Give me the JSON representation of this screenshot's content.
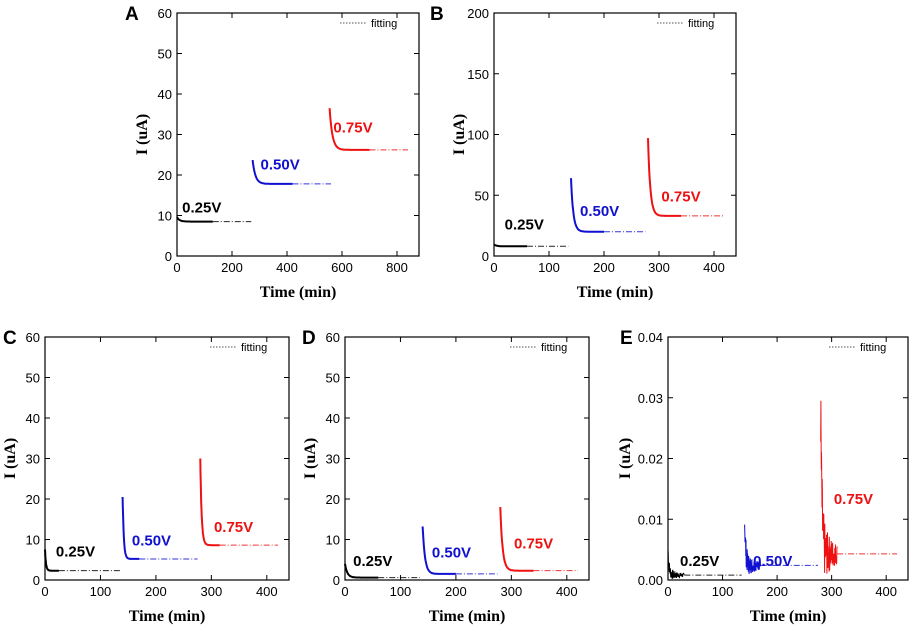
{
  "colors": {
    "v025": "#000000",
    "v050": "#1010d0",
    "v075": "#ee1111"
  },
  "chart_data": [
    {
      "panel": "A",
      "type": "line",
      "xlabel": "Time (min)",
      "ylabel": "I (uA)",
      "xlim": [
        0,
        880
      ],
      "ylim": [
        0,
        60
      ],
      "xticks": [
        0,
        200,
        400,
        600,
        800
      ],
      "yticks": [
        0,
        10,
        20,
        30,
        40,
        50,
        60
      ],
      "legend": "fitting",
      "series": [
        {
          "name": "0.25V",
          "color": "#000000",
          "t0": 0,
          "t1": 130,
          "peak": 9.6,
          "base": 8.5,
          "fit_end": 270
        },
        {
          "name": "0.50V",
          "color": "#1010d0",
          "t0": 275,
          "t1": 420,
          "peak": 23.7,
          "base": 17.8,
          "fit_end": 560
        },
        {
          "name": "0.75V",
          "color": "#ee1111",
          "t0": 555,
          "t1": 700,
          "peak": 36.5,
          "base": 26.2,
          "fit_end": 840
        }
      ],
      "labels": [
        {
          "text": "0.25V",
          "x": 90,
          "y": 10.8
        },
        {
          "text": "0.50V",
          "x": 375,
          "y": 21.3
        },
        {
          "text": "0.75V",
          "x": 640,
          "y": 30.5
        }
      ]
    },
    {
      "panel": "B",
      "type": "line",
      "xlabel": "Time (min)",
      "ylabel": "I (uA)",
      "xlim": [
        0,
        440
      ],
      "ylim": [
        0,
        200
      ],
      "xticks": [
        0,
        100,
        200,
        300,
        400
      ],
      "yticks": [
        0,
        50,
        100,
        150,
        200
      ],
      "legend": "fitting",
      "series": [
        {
          "name": "0.25V",
          "color": "#000000",
          "t0": 0,
          "t1": 60,
          "peak": 9.5,
          "base": 8.0,
          "fit_end": 135
        },
        {
          "name": "0.50V",
          "color": "#1010d0",
          "t0": 140,
          "t1": 200,
          "peak": 64.0,
          "base": 20.0,
          "fit_end": 275
        },
        {
          "name": "0.75V",
          "color": "#ee1111",
          "t0": 280,
          "t1": 340,
          "peak": 97.0,
          "base": 33.0,
          "fit_end": 420
        }
      ],
      "labels": [
        {
          "text": "0.25V",
          "x": 55,
          "y": 22
        },
        {
          "text": "0.50V",
          "x": 192,
          "y": 33
        },
        {
          "text": "0.75V",
          "x": 340,
          "y": 45
        }
      ]
    },
    {
      "panel": "C",
      "type": "line",
      "xlabel": "Time (min)",
      "ylabel": "I (uA)",
      "xlim": [
        0,
        440
      ],
      "ylim": [
        0,
        60
      ],
      "xticks": [
        0,
        100,
        200,
        300,
        400
      ],
      "yticks": [
        0,
        10,
        20,
        30,
        40,
        50,
        60
      ],
      "legend": "fitting",
      "series": [
        {
          "name": "0.25V",
          "color": "#000000",
          "t0": 0,
          "t1": 25,
          "peak": 7.5,
          "base": 2.3,
          "fit_end": 135
        },
        {
          "name": "0.50V",
          "color": "#1010d0",
          "t0": 140,
          "t1": 170,
          "peak": 20.5,
          "base": 5.2,
          "fit_end": 275
        },
        {
          "name": "0.75V",
          "color": "#ee1111",
          "t0": 280,
          "t1": 315,
          "peak": 30.0,
          "base": 8.6,
          "fit_end": 420
        }
      ],
      "labels": [
        {
          "text": "0.25V",
          "x": 55,
          "y": 5.8
        },
        {
          "text": "0.50V",
          "x": 192,
          "y": 8.5
        },
        {
          "text": "0.75V",
          "x": 340,
          "y": 11.8
        }
      ]
    },
    {
      "panel": "D",
      "type": "line",
      "xlabel": "Time (min)",
      "ylabel": "I (uA)",
      "xlim": [
        0,
        440
      ],
      "ylim": [
        0,
        60
      ],
      "xticks": [
        0,
        100,
        200,
        300,
        400
      ],
      "yticks": [
        0,
        10,
        20,
        30,
        40,
        50,
        60
      ],
      "legend": "fitting",
      "series": [
        {
          "name": "0.25V",
          "color": "#000000",
          "t0": 0,
          "t1": 60,
          "peak": 4.0,
          "base": 0.6,
          "fit_end": 135
        },
        {
          "name": "0.50V",
          "color": "#1010d0",
          "t0": 140,
          "t1": 200,
          "peak": 13.2,
          "base": 1.5,
          "fit_end": 275
        },
        {
          "name": "0.75V",
          "color": "#ee1111",
          "t0": 280,
          "t1": 340,
          "peak": 18.0,
          "base": 2.3,
          "fit_end": 420
        }
      ],
      "labels": [
        {
          "text": "0.25V",
          "x": 50,
          "y": 3.5
        },
        {
          "text": "0.50V",
          "x": 192,
          "y": 5.5
        },
        {
          "text": "0.75V",
          "x": 340,
          "y": 7.8
        }
      ]
    },
    {
      "panel": "E",
      "type": "line",
      "xlabel": "Time (min)",
      "ylabel": "I (uA)",
      "xlim": [
        0,
        440
      ],
      "ylim": [
        0,
        0.04
      ],
      "xticks": [
        0,
        100,
        200,
        300,
        400
      ],
      "yticks": [
        0,
        0.01,
        0.02,
        0.03,
        0.04
      ],
      "ytick_labels": [
        "0.00",
        "0.01",
        "0.02",
        "0.03",
        "0.04"
      ],
      "legend": "fitting",
      "series": [
        {
          "name": "0.25V",
          "color": "#000000",
          "t0": 0,
          "t1": 30,
          "peak": 0.005,
          "base": 0.0008,
          "fit_end": 135,
          "noisy": true
        },
        {
          "name": "0.50V",
          "color": "#1010d0",
          "t0": 140,
          "t1": 170,
          "peak": 0.0115,
          "base": 0.0024,
          "fit_end": 275,
          "noisy": true
        },
        {
          "name": "0.75V",
          "color": "#ee1111",
          "t0": 280,
          "t1": 310,
          "peak": 0.028,
          "base": 0.0043,
          "fit_end": 420,
          "noisy": true
        }
      ],
      "labels": [
        {
          "text": "0.25V",
          "x": 58,
          "y": 0.0023
        },
        {
          "text": "0.50V",
          "x": 192,
          "y": 0.0023
        },
        {
          "text": "0.75V",
          "x": 340,
          "y": 0.0125
        }
      ]
    }
  ]
}
